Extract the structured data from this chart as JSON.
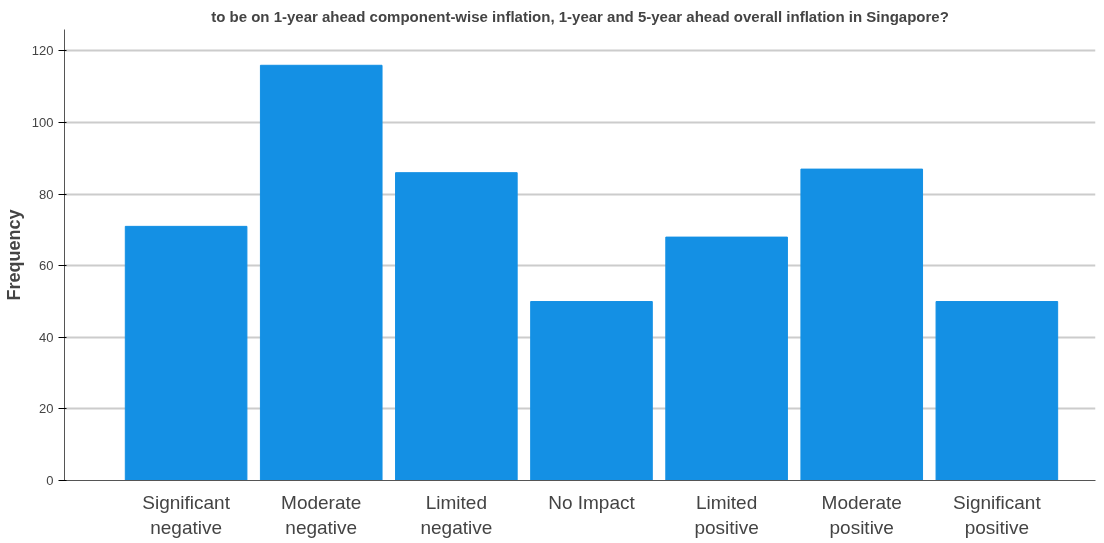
{
  "chart_data": {
    "type": "bar",
    "title": "to be on 1-year ahead component-wise inflation, 1-year and 5-year ahead overall inflation in Singapore?",
    "ylabel": "Frequency",
    "categories": [
      "Significant\nnegative",
      "Moderate\nnegative",
      "Limited\nnegative",
      "No Impact",
      "Limited\npositive",
      "Moderate\npositive",
      "Significant\npositive"
    ],
    "values": [
      71,
      116,
      86,
      50,
      68,
      87,
      50
    ],
    "color": "#1490e4",
    "ylim": [
      0,
      126
    ],
    "yticks": [
      0,
      20,
      40,
      60,
      80,
      100,
      120
    ],
    "grid": "y"
  }
}
